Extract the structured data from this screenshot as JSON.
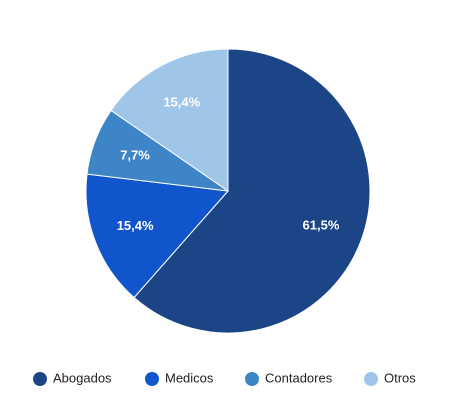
{
  "chart_data": {
    "type": "pie",
    "categories": [
      "Abogados",
      "Medicos",
      "Contadores",
      "Otros"
    ],
    "values": [
      61.5,
      15.4,
      7.7,
      15.4
    ],
    "value_labels": [
      "61,5%",
      "15,4%",
      "7,7%",
      "15,4%"
    ],
    "colors": [
      "#1c4587",
      "#1155cc",
      "#3d85c6",
      "#9fc5e8"
    ],
    "legend": "bottom"
  }
}
